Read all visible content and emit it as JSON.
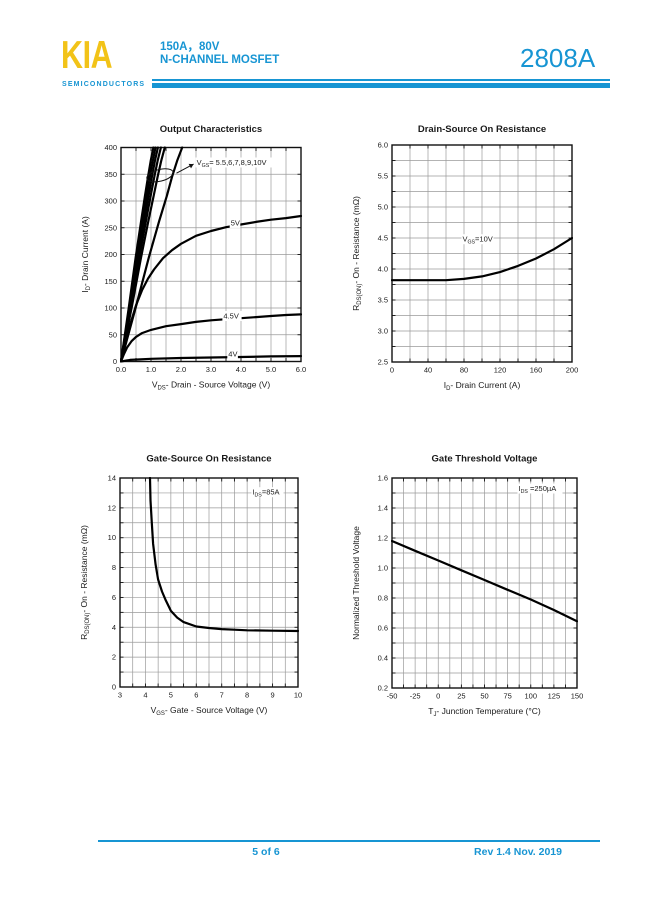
{
  "header": {
    "logo_text": "KIA",
    "logo_subtext": "SEMICONDUCTORS",
    "rating": "150A，80V",
    "device_type": "N-CHANNEL MOSFET",
    "part_number": "2808A",
    "accent_color": "#1795d3",
    "logo_color": "#f2c318"
  },
  "footer": {
    "page_indicator": "5 of 6",
    "revision": "Rev 1.4 Nov. 2019"
  },
  "chart_data": [
    {
      "type": "line",
      "title": "Output Characteristics",
      "xlabel": "V_DS_- Drain - Source Voltage (V)",
      "ylabel": "I_D_- Drain Current (A)",
      "xlim": [
        0,
        6
      ],
      "ylim": [
        0,
        400
      ],
      "xticks": [
        0,
        1,
        2,
        3,
        4,
        5,
        6
      ],
      "xtick_labels": [
        "0.0",
        "1.0",
        "2.0",
        "3.0",
        "4.0",
        "5.0",
        "6.0"
      ],
      "yticks": [
        0,
        50,
        100,
        150,
        200,
        250,
        300,
        350,
        400
      ],
      "ytick_labels": [
        "0",
        "50",
        "100",
        "150",
        "200",
        "250",
        "300",
        "350",
        "400"
      ],
      "x_minor": 0.5,
      "y_minor": 50,
      "series": [
        {
          "name": "VGS=10V",
          "points": [
            [
              0,
              0
            ],
            [
              0.27,
              105
            ],
            [
              0.49,
              195
            ],
            [
              0.67,
              262
            ],
            [
              0.8,
              310
            ],
            [
              0.9,
              345
            ],
            [
              0.99,
              375
            ],
            [
              1.08,
              400
            ]
          ]
        },
        {
          "name": "VGS=9V",
          "points": [
            [
              0,
              0
            ],
            [
              0.29,
              105
            ],
            [
              0.52,
              195
            ],
            [
              0.72,
              262
            ],
            [
              0.86,
              310
            ],
            [
              0.96,
              345
            ],
            [
              1.06,
              375
            ],
            [
              1.15,
              400
            ]
          ]
        },
        {
          "name": "VGS=8V",
          "points": [
            [
              0,
              0
            ],
            [
              0.31,
              105
            ],
            [
              0.56,
              195
            ],
            [
              0.77,
              262
            ],
            [
              0.92,
              310
            ],
            [
              1.03,
              345
            ],
            [
              1.13,
              375
            ],
            [
              1.23,
              400
            ]
          ]
        },
        {
          "name": "VGS=7V",
          "points": [
            [
              0,
              0
            ],
            [
              0.33,
              105
            ],
            [
              0.61,
              195
            ],
            [
              0.83,
              262
            ],
            [
              0.99,
              310
            ],
            [
              1.11,
              345
            ],
            [
              1.22,
              375
            ],
            [
              1.33,
              400
            ]
          ]
        },
        {
          "name": "VGS=6V",
          "points": [
            [
              0,
              0
            ],
            [
              0.37,
              105
            ],
            [
              0.67,
              195
            ],
            [
              0.91,
              262
            ],
            [
              1.09,
              310
            ],
            [
              1.22,
              345
            ],
            [
              1.34,
              375
            ],
            [
              1.46,
              400
            ]
          ]
        },
        {
          "name": "VGS=5.5V",
          "points": [
            [
              0,
              0
            ],
            [
              0.51,
              105
            ],
            [
              0.93,
              195
            ],
            [
              1.27,
              262
            ],
            [
              1.53,
              310
            ],
            [
              1.7,
              345
            ],
            [
              1.87,
              375
            ],
            [
              2.04,
              400
            ]
          ]
        },
        {
          "name": "VGS=5V",
          "points": [
            [
              0,
              0
            ],
            [
              0.15,
              35
            ],
            [
              0.3,
              68
            ],
            [
              0.5,
              105
            ],
            [
              0.7,
              133
            ],
            [
              0.9,
              155
            ],
            [
              1.1,
              172
            ],
            [
              1.4,
              193
            ],
            [
              1.7,
              208
            ],
            [
              2.0,
              220
            ],
            [
              2.5,
              235
            ],
            [
              3.0,
              244
            ],
            [
              3.5,
              251
            ],
            [
              4.0,
              256
            ],
            [
              4.5,
              261
            ],
            [
              5.0,
              265
            ],
            [
              5.5,
              268
            ],
            [
              6.0,
              272
            ]
          ]
        },
        {
          "name": "VGS=4.5V",
          "points": [
            [
              0,
              0
            ],
            [
              0.1,
              14
            ],
            [
              0.2,
              26
            ],
            [
              0.35,
              38
            ],
            [
              0.5,
              46
            ],
            [
              0.7,
              53
            ],
            [
              1.0,
              59
            ],
            [
              1.5,
              66
            ],
            [
              2.0,
              70
            ],
            [
              2.5,
              74
            ],
            [
              3.0,
              77
            ],
            [
              3.5,
              79
            ],
            [
              4.0,
              81
            ],
            [
              4.5,
              83
            ],
            [
              5.0,
              85
            ],
            [
              5.5,
              87
            ],
            [
              6.0,
              88
            ]
          ]
        },
        {
          "name": "VGS=4V",
          "points": [
            [
              0,
              0
            ],
            [
              0.3,
              3
            ],
            [
              1.0,
              5
            ],
            [
              2.0,
              6.5
            ],
            [
              3.0,
              7.5
            ],
            [
              4.0,
              8.5
            ],
            [
              5.0,
              9.5
            ],
            [
              6.0,
              10
            ]
          ]
        }
      ],
      "labels": [
        {
          "text": "5V",
          "x": 3.8,
          "y": 259
        },
        {
          "text": "4.5V",
          "x": 3.7,
          "y": 85
        },
        {
          "text": "4V",
          "x": 3.72,
          "y": 14
        }
      ],
      "callout": {
        "text": "V_GS_= 5.5,6,7,8,9,10V",
        "tx": 2.52,
        "ty": 372,
        "ellipse": {
          "cx": 1.3,
          "cy": 348,
          "rx": 0.45,
          "ry": 11,
          "tilt": -14
        },
        "arrow": {
          "x1": 1.85,
          "y1": 352,
          "x2": 2.42,
          "y2": 369
        }
      }
    },
    {
      "type": "line",
      "title": "Drain-Source On Resistance",
      "xlabel": "I_D_- Drain Current (A)",
      "ylabel": "R_DS(ON)_- On - Resistance (mΩ)",
      "xlim": [
        0,
        200
      ],
      "ylim": [
        2.5,
        6.0
      ],
      "xticks": [
        0,
        40,
        80,
        120,
        160,
        200
      ],
      "xtick_labels": [
        "0",
        "40",
        "80",
        "120",
        "160",
        "200"
      ],
      "yticks": [
        2.5,
        3.0,
        3.5,
        4.0,
        4.5,
        5.0,
        5.5,
        6.0
      ],
      "ytick_labels": [
        "2.5",
        "3.0",
        "3.5",
        "4.0",
        "4.5",
        "5.0",
        "5.5",
        "6.0"
      ],
      "x_minor": 20,
      "y_minor": 0.25,
      "series": [
        {
          "name": "VGS=10V",
          "points": [
            [
              0,
              3.82
            ],
            [
              20,
              3.82
            ],
            [
              40,
              3.82
            ],
            [
              60,
              3.82
            ],
            [
              80,
              3.84
            ],
            [
              100,
              3.88
            ],
            [
              120,
              3.95
            ],
            [
              140,
              4.05
            ],
            [
              160,
              4.17
            ],
            [
              180,
              4.32
            ],
            [
              200,
              4.5
            ]
          ]
        }
      ],
      "labels": [
        {
          "text": "V_GS_=10V",
          "x": 95,
          "y": 4.48
        }
      ]
    },
    {
      "type": "line",
      "title": "Gate-Source On Resistance",
      "xlabel": "V_GS_- Gate - Source Voltage (V)",
      "ylabel": "R_DS(ON)_- On - Resistance (mΩ)",
      "xlim": [
        3,
        10
      ],
      "ylim": [
        0,
        14
      ],
      "xticks": [
        3,
        4,
        5,
        6,
        7,
        8,
        9,
        10
      ],
      "xtick_labels": [
        "3",
        "4",
        "5",
        "6",
        "7",
        "8",
        "9",
        "10"
      ],
      "yticks": [
        0,
        2,
        4,
        6,
        8,
        10,
        12,
        14
      ],
      "ytick_labels": [
        "0",
        "2",
        "4",
        "6",
        "8",
        "10",
        "12",
        "14"
      ],
      "x_minor": 0.5,
      "y_minor": 1,
      "series": [
        {
          "name": "IDS=85A",
          "points": [
            [
              4.18,
              14
            ],
            [
              4.2,
              12.5
            ],
            [
              4.25,
              11
            ],
            [
              4.3,
              9.6
            ],
            [
              4.4,
              8.2
            ],
            [
              4.5,
              7.2
            ],
            [
              4.65,
              6.4
            ],
            [
              4.8,
              5.8
            ],
            [
              5.0,
              5.1
            ],
            [
              5.25,
              4.65
            ],
            [
              5.5,
              4.35
            ],
            [
              6.0,
              4.05
            ],
            [
              6.5,
              3.95
            ],
            [
              7.0,
              3.88
            ],
            [
              7.5,
              3.84
            ],
            [
              8.0,
              3.8
            ],
            [
              9.0,
              3.77
            ],
            [
              10.0,
              3.75
            ]
          ]
        }
      ],
      "labels": [
        {
          "text": "I_DS_=85A",
          "x": 8.8,
          "y": 13.05
        }
      ]
    },
    {
      "type": "line",
      "title": "Gate Threshold Voltage",
      "xlabel": "T_J_- Junction Temperature (°C)",
      "ylabel": "Normalized Threshold Voltage",
      "xlim": [
        -50,
        150
      ],
      "ylim": [
        0.2,
        1.6
      ],
      "xticks": [
        -50,
        -25,
        0,
        25,
        50,
        75,
        100,
        125,
        150
      ],
      "xtick_labels": [
        "-50",
        "-25",
        "0",
        "25",
        "50",
        "75",
        "100",
        "125",
        "150"
      ],
      "yticks": [
        0.2,
        0.4,
        0.6,
        0.8,
        1.0,
        1.2,
        1.4,
        1.6
      ],
      "ytick_labels": [
        "0.2",
        "0.4",
        "0.6",
        "0.8",
        "1.0",
        "1.2",
        "1.4",
        "1.6"
      ],
      "x_minor": 12.5,
      "y_minor": 0.1,
      "series": [
        {
          "name": "IDS=250uA",
          "points": [
            [
              -50,
              1.18
            ],
            [
              -25,
              1.115
            ],
            [
              0,
              1.05
            ],
            [
              25,
              0.985
            ],
            [
              50,
              0.92
            ],
            [
              75,
              0.855
            ],
            [
              100,
              0.79
            ],
            [
              125,
              0.72
            ],
            [
              150,
              0.645
            ]
          ]
        }
      ],
      "labels": [
        {
          "text": "I_DS_ =250µA",
          "x": 110,
          "y": 1.53
        }
      ]
    }
  ]
}
